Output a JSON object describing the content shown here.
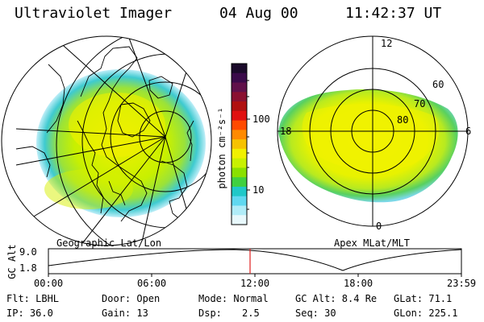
{
  "header": {
    "instrument": "Ultraviolet Imager",
    "date": "04 Aug 00",
    "time": "11:42:37 UT"
  },
  "panels": {
    "left_label": "Geographic Lat/Lon",
    "right_label": "Apex MLat/MLT"
  },
  "apex_labels": {
    "mlt": [
      "12",
      "18",
      "6",
      "0"
    ],
    "mlat": [
      "60",
      "70",
      "80"
    ]
  },
  "colorbar": {
    "unit_label": "photon cm⁻²s⁻¹",
    "ticks": [
      "100",
      "10"
    ],
    "colors": [
      "#1a0a2a",
      "#3a0a4a",
      "#60104a",
      "#8a1030",
      "#b01010",
      "#e01010",
      "#ff4a00",
      "#ff8a00",
      "#f6c200",
      "#f0f000",
      "#c8f000",
      "#8ae000",
      "#40d040",
      "#20c8c8",
      "#60d8f0",
      "#b0ecf8",
      "#e8f8fc"
    ]
  },
  "timeline": {
    "y_label": "GC Alt",
    "y_ticks": [
      "9.0",
      "1.8"
    ],
    "x_ticks": [
      "00:00",
      "06:00",
      "12:00",
      "18:00",
      "23:59"
    ],
    "marker_color": "#e02020"
  },
  "info": {
    "row1": {
      "flt": "Flt: LBHL",
      "door": "Door: Open",
      "mode": "Mode: Normal",
      "gcalt": "GC Alt: 8.4 Re",
      "glat": "GLat:  71.1"
    },
    "row2": {
      "ip": "IP: 36.0",
      "gain": "Gain: 13",
      "dsp_label": "Dsp:",
      "dsp_val": "2.5",
      "seq": "Seq: 30",
      "glon": "GLon: 225.1"
    }
  }
}
